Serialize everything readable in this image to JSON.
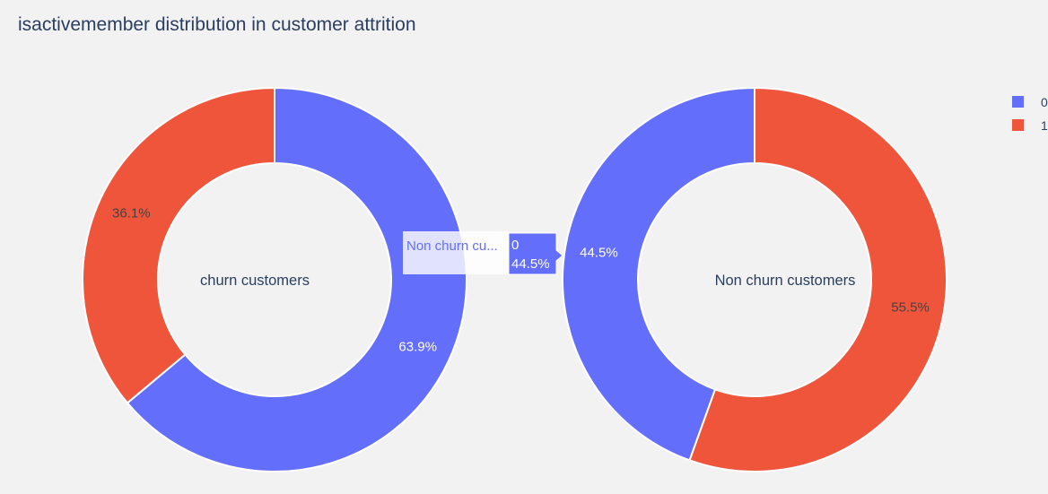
{
  "chart_data": {
    "type": "pie",
    "title": "isactivemember distribution in customer attrition",
    "hole": true,
    "legend": {
      "placement": "top-right",
      "entries": [
        {
          "label": "0",
          "color": "#636efa"
        },
        {
          "label": "1",
          "color": "#ef553b"
        }
      ]
    },
    "charts": [
      {
        "id": "churn",
        "center_label": "churn customers",
        "slices": [
          {
            "label": "0",
            "value": 63.9,
            "text": "63.9%",
            "color": "#636efa"
          },
          {
            "label": "1",
            "value": 36.1,
            "text": "36.1%",
            "color": "#ef553b"
          }
        ]
      },
      {
        "id": "nonchurn",
        "center_label": "Non churn customers",
        "slices": [
          {
            "label": "0",
            "value": 44.5,
            "text": "44.5%",
            "color": "#636efa"
          },
          {
            "label": "1",
            "value": 55.5,
            "text": "55.5%",
            "color": "#ef553b"
          }
        ]
      }
    ],
    "hover": {
      "name": "Non churn cu...",
      "label": "0",
      "value": "44.5%"
    }
  }
}
